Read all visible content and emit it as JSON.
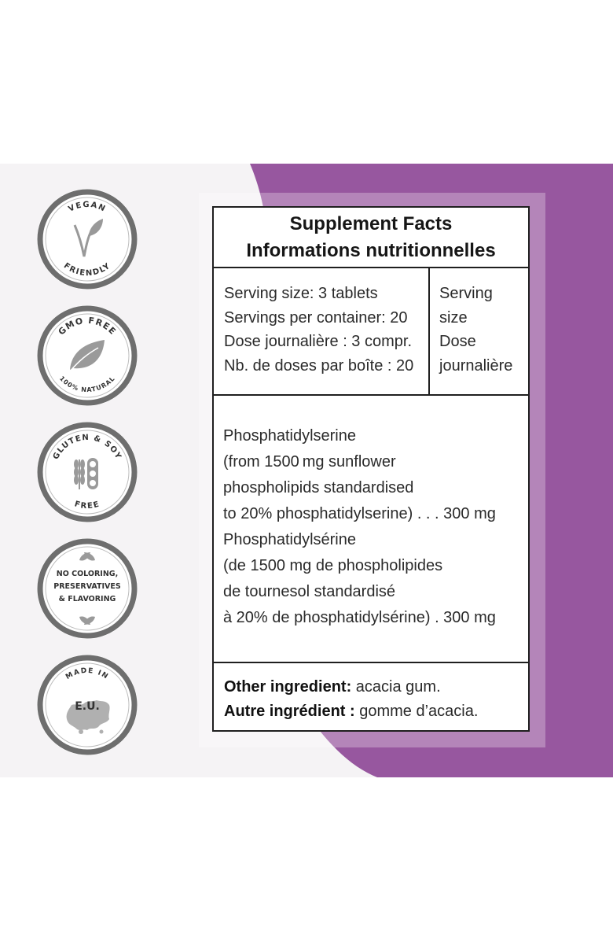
{
  "colors": {
    "accent_purple": "#97579f",
    "panel_background": "#f5f3f5",
    "badge_ring": "#6e6e6e"
  },
  "badges": [
    {
      "icon": "vegan-leaf-icon",
      "top_text": "VEGAN",
      "bottom_text": "FRIENDLY"
    },
    {
      "icon": "gmo-free-leaf-icon",
      "top_text": "GMO FREE",
      "bottom_text": "100% NATURAL"
    },
    {
      "icon": "wheat-soy-icon",
      "top_text": "GLUTEN & SOY",
      "bottom_text": "FREE"
    },
    {
      "icon": "leaves-icon",
      "lines": [
        "NO COLORING,",
        "PRESERVATIVES",
        "& FLAVORING"
      ]
    },
    {
      "icon": "europe-map-icon",
      "top_text": "MADE IN",
      "center_text": "E.U."
    }
  ],
  "facts": {
    "title_en": "Supplement Facts",
    "title_fr": "Informations nutritionnelles",
    "serving_lines": [
      "Serving size: 3 tablets",
      "Servings per container: 20",
      "Dose journalière : 3 compr.",
      "Nb. de doses par boîte : 20"
    ],
    "serving_header": [
      "Serving",
      "size",
      "Dose",
      "journalière"
    ],
    "ingredient_lines": [
      "Phosphatidylserine",
      "(from 1500 mg sunflower",
      "phospholipids standardised",
      "to 20% phosphatidylserine) . . . 300 mg",
      "Phosphatidylsérine",
      "(de 1500 mg de phospholipides",
      "de tournesol standardisé",
      "à 20% de phosphatidylsérine) . 300 mg"
    ],
    "other_label_en": "Other ingredient:",
    "other_value_en": " acacia gum.",
    "other_label_fr": "Autre ingrédient :",
    "other_value_fr": " gomme d’acacia."
  }
}
